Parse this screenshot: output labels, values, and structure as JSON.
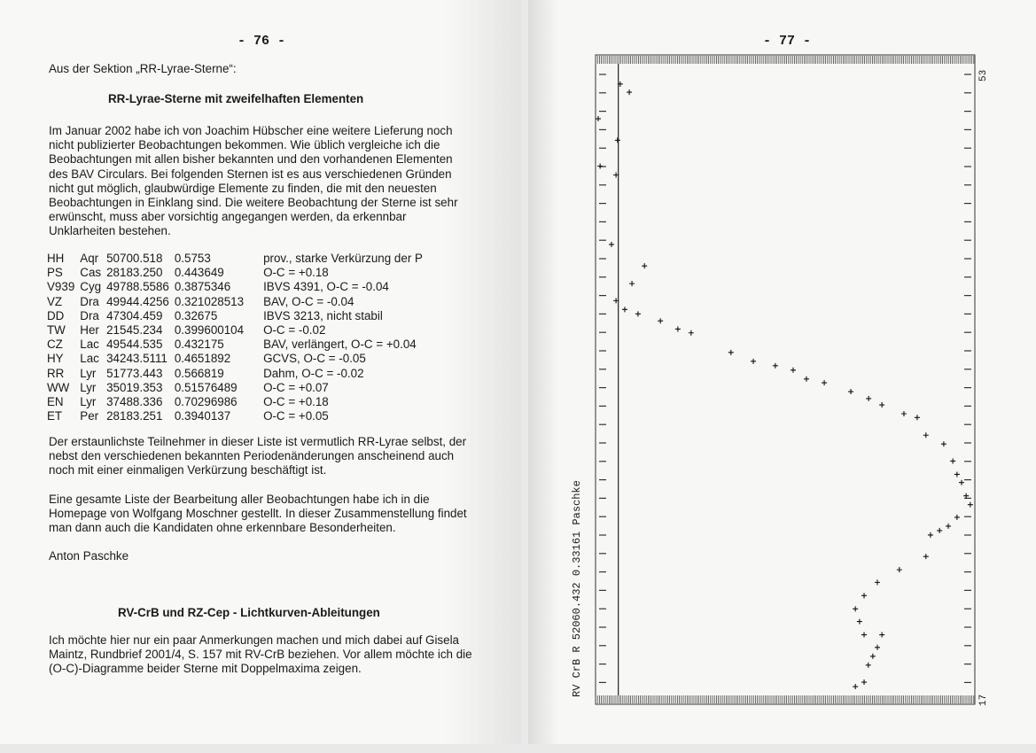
{
  "left_page": {
    "page_number": "- 76 -",
    "intro": "Aus der Sektion „RR-Lyrae-Sterne“:",
    "heading1": "RR-Lyrae-Sterne mit zweifelhaften Elementen",
    "para1": "Im Januar 2002 habe ich von Joachim Hübscher eine weitere Lieferung noch nicht publizierter Beobachtungen bekommen. Wie üblich vergleiche ich die Beobachtungen mit allen bisher bekannten und den vorhandenen  Elementen des BAV Circulars. Bei folgenden Sternen ist es aus verschiedenen Gründen nicht gut möglich, glaubwürdige Elemente zu finden, die mit den neuesten Beobachtungen in Einklang sind. Die weitere Beobachtung der Sterne ist sehr erwünscht, muss aber vorsichtig angegangen werden, da erkennbar Unklarheiten bestehen.",
    "table": [
      [
        "HH",
        "Aqr",
        "50700.518",
        "0.5753",
        "prov., starke Verkürzung der P"
      ],
      [
        "PS",
        "Cas",
        "28183.250",
        "0.443649",
        "O-C = +0.18"
      ],
      [
        "V939",
        "Cyg",
        "49788.5586",
        "0.3875346",
        "IBVS 4391, O-C = -0.04"
      ],
      [
        "VZ",
        "Dra",
        "49944.4256",
        "0.321028513",
        "BAV, O-C = -0.04"
      ],
      [
        "DD",
        "Dra",
        "47304.459",
        "0.32675",
        "IBVS 3213, nicht stabil"
      ],
      [
        "TW",
        "Her",
        "21545.234",
        "0.399600104",
        "O-C = -0.02"
      ],
      [
        "CZ",
        "Lac",
        "49544.535",
        "0.432175",
        "BAV, verlängert, O-C = +0.04"
      ],
      [
        "HY",
        "Lac",
        "34243.5111",
        "0.4651892",
        "GCVS, O-C = -0.05"
      ],
      [
        "RR",
        "Lyr",
        "51773.443",
        "0.566819",
        "Dahm, O-C = -0.02"
      ],
      [
        "WW",
        "Lyr",
        "35019.353",
        "0.51576489",
        "O-C = +0.07"
      ],
      [
        "EN",
        "Lyr",
        "37488.336",
        "0.70296986",
        "O-C = +0.18"
      ],
      [
        "ET",
        "Per",
        "28183.251",
        "0.3940137",
        "O-C = +0.05"
      ]
    ],
    "para2": "Der erstaunlichste Teilnehmer in dieser Liste ist vermutlich RR-Lyrae selbst, der nebst den verschiedenen bekannten Periodenänderungen anscheinend auch noch mit einer einmaligen Verkürzung beschäftigt ist.",
    "para3": "Eine gesamte Liste der Bearbeitung aller Beobachtungen habe ich in die Homepage von Wolfgang Moschner gestellt. In dieser Zusammenstellung findet man dann auch die Kandidaten ohne erkennbare Besonderheiten.",
    "author": "Anton Paschke",
    "heading2": "RV-CrB und RZ-Cep  - Lichtkurven-Ableitungen",
    "para4": "Ich möchte hier nur ein paar Anmerkungen machen und mich dabei auf Gisela Maintz, Rundbrief 2001/4, S. 157 mit RV-CrB beziehen. Vor allem möchte ich die (O-C)-Diagramme beider Sterne mit Doppelmaxima zeigen."
  },
  "right_page": {
    "page_number": "- 77 -",
    "chart_data": {
      "type": "scatter",
      "title": "RV CrB R 52060.432 0.33161 Paschke",
      "corner_label_top": "53",
      "corner_label_bottom": "17",
      "marker": "+",
      "points": [
        [
          6.5,
          3.2
        ],
        [
          8.9,
          4.5
        ],
        [
          0.7,
          8.7
        ],
        [
          5.8,
          12.1
        ],
        [
          1.2,
          16.2
        ],
        [
          5.4,
          17.6
        ],
        [
          4.2,
          28.6
        ],
        [
          12.9,
          32
        ],
        [
          9.6,
          34.8
        ],
        [
          5.4,
          37.5
        ],
        [
          7.7,
          38.9
        ],
        [
          11.2,
          39.6
        ],
        [
          17.1,
          40.7
        ],
        [
          21.7,
          42
        ],
        [
          25.2,
          42.6
        ],
        [
          35.7,
          45.7
        ],
        [
          41.6,
          47.1
        ],
        [
          47.4,
          47.8
        ],
        [
          52.1,
          48.5
        ],
        [
          55.6,
          49.9
        ],
        [
          60.3,
          50.5
        ],
        [
          67.3,
          51.9
        ],
        [
          72,
          53
        ],
        [
          75.5,
          54
        ],
        [
          81.3,
          55.4
        ],
        [
          84.8,
          56
        ],
        [
          87.1,
          58.8
        ],
        [
          91.8,
          60.2
        ],
        [
          94.2,
          62.9
        ],
        [
          95.3,
          65
        ],
        [
          96.5,
          66.3
        ],
        [
          97.7,
          68.4
        ],
        [
          98.8,
          69.8
        ],
        [
          95.3,
          71.8
        ],
        [
          93,
          73.2
        ],
        [
          90.7,
          73.9
        ],
        [
          88.3,
          74.6
        ],
        [
          87.1,
          78
        ],
        [
          80.1,
          80.1
        ],
        [
          74.3,
          82.1
        ],
        [
          70.8,
          84.2
        ],
        [
          68.5,
          86.3
        ],
        [
          69.6,
          88.3
        ],
        [
          70.8,
          90.4
        ],
        [
          75.5,
          90.4
        ],
        [
          74.3,
          92.4
        ],
        [
          73.1,
          93.8
        ],
        [
          71.9,
          95.2
        ],
        [
          70.8,
          97.9
        ],
        [
          68.5,
          98.6
        ]
      ],
      "xlim": [
        0,
        100
      ],
      "ylim": [
        0,
        100
      ],
      "reference_line_x": 6
    }
  }
}
